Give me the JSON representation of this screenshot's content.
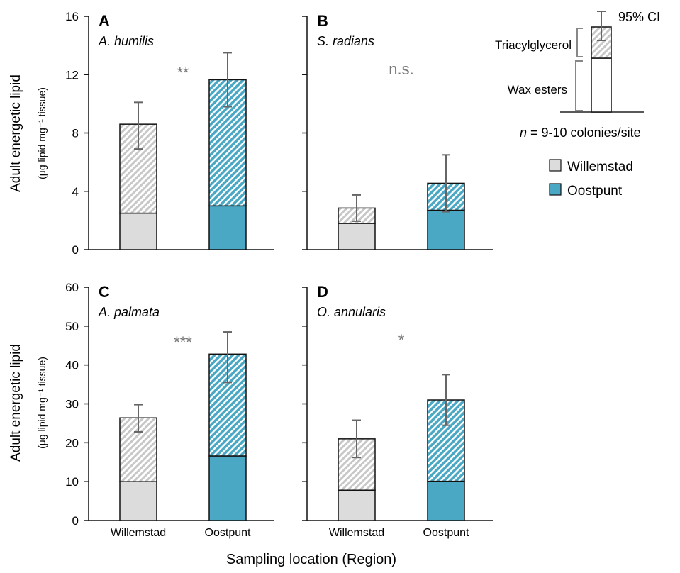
{
  "figure": {
    "ylabel_main": "Adult energetic lipid",
    "ylabel_sub": "(µg lipid mg⁻¹ tissue)",
    "xlabel": "Sampling location (Region)",
    "colors": {
      "willemstad_fill": "#dcdcdc",
      "willemstad_hatch": "#c8c8c8",
      "oostpunt_fill": "#4aa8c4",
      "oostpunt_hatch": "#ffffff",
      "errorbar": "#666666",
      "signif": "#777777"
    }
  },
  "legend": {
    "ci_label": "95% CI",
    "tag_label": "Triacylglycerol",
    "we_label": "Wax esters",
    "n_label_prefix": "n",
    "n_label_rest": " = 9-10 colonies/site",
    "series": [
      {
        "name": "Willemstad",
        "color": "#dcdcdc"
      },
      {
        "name": "Oostpunt",
        "color": "#4aa8c4"
      }
    ]
  },
  "chart_data": [
    {
      "type": "bar",
      "panel": "A",
      "species": "A. humilis",
      "significance": "**",
      "categories": [
        "Willemstad",
        "Oostpunt"
      ],
      "ylim": [
        0,
        16
      ],
      "yticks": [
        0,
        4,
        8,
        12,
        16
      ],
      "series": [
        {
          "name": "Wax esters",
          "values": [
            2.5,
            3.0
          ]
        },
        {
          "name": "Triacylglycerol",
          "values": [
            6.1,
            8.65
          ]
        }
      ],
      "totals": [
        8.6,
        11.65
      ],
      "ci": [
        [
          6.9,
          10.1
        ],
        [
          9.8,
          13.5
        ]
      ]
    },
    {
      "type": "bar",
      "panel": "B",
      "species": "S. radians",
      "significance": "n.s.",
      "categories": [
        "Willemstad",
        "Oostpunt"
      ],
      "ylim": [
        0,
        16
      ],
      "yticks": [
        0,
        4,
        8,
        12,
        16
      ],
      "series": [
        {
          "name": "Wax esters",
          "values": [
            1.8,
            2.7
          ]
        },
        {
          "name": "Triacylglycerol",
          "values": [
            1.05,
            1.85
          ]
        }
      ],
      "totals": [
        2.85,
        4.55
      ],
      "ci": [
        [
          1.95,
          3.75
        ],
        [
          2.6,
          6.5
        ]
      ]
    },
    {
      "type": "bar",
      "panel": "C",
      "species": "A. palmata",
      "significance": "***",
      "categories": [
        "Willemstad",
        "Oostpunt"
      ],
      "ylim": [
        0,
        60
      ],
      "yticks": [
        0,
        10,
        20,
        30,
        40,
        50,
        60
      ],
      "series": [
        {
          "name": "Wax esters",
          "values": [
            10,
            16.6
          ]
        },
        {
          "name": "Triacylglycerol",
          "values": [
            16.4,
            26.2
          ]
        }
      ],
      "totals": [
        26.4,
        42.8
      ],
      "ci": [
        [
          22.8,
          29.8
        ],
        [
          35.5,
          48.5
        ]
      ]
    },
    {
      "type": "bar",
      "panel": "D",
      "species": "O. annularis",
      "significance": "*",
      "categories": [
        "Willemstad",
        "Oostpunt"
      ],
      "ylim": [
        0,
        60
      ],
      "yticks": [
        0,
        10,
        20,
        30,
        40,
        50,
        60
      ],
      "series": [
        {
          "name": "Wax esters",
          "values": [
            7.8,
            10.1
          ]
        },
        {
          "name": "Triacylglycerol",
          "values": [
            13.2,
            20.9
          ]
        }
      ],
      "totals": [
        21.0,
        31.0
      ],
      "ci": [
        [
          16.2,
          25.8
        ],
        [
          24.5,
          37.5
        ]
      ]
    }
  ]
}
